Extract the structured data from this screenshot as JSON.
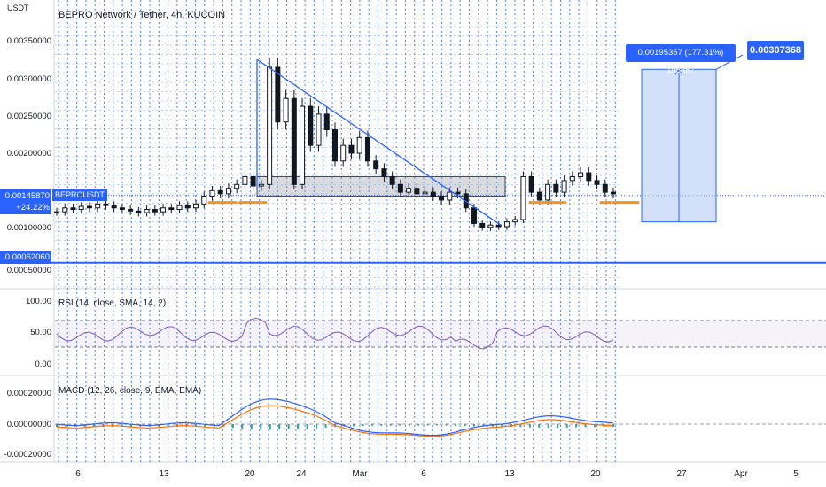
{
  "header": {
    "currency": "USDT",
    "title": "BEPRO Network / Tether, 4h, KUCOIN"
  },
  "price_axis": {
    "ticks": [
      {
        "value": 0.0035,
        "label": "0.00350000"
      },
      {
        "value": 0.003,
        "label": "0.00300000"
      },
      {
        "value": 0.0025,
        "label": "0.00250000"
      },
      {
        "value": 0.002,
        "label": "0.00200000"
      },
      {
        "value": 0.001,
        "label": "0.00100000"
      },
      {
        "value": 0.0005,
        "label": "0.00050000"
      }
    ]
  },
  "last_price": {
    "value": "0.00145870",
    "change": "+24.22%",
    "symbol": "BEPROUSDT"
  },
  "support_level": "0.00062060",
  "measure": {
    "label": "0.00195357 (177.31%) 195357",
    "target": "0.00307368"
  },
  "rsi": {
    "title": "RSI (14, close, SMA, 14, 2)",
    "ticks": [
      "100.00",
      "50.00",
      "0.00"
    ]
  },
  "macd": {
    "title": "MACD (12, 26, close, 9, EMA, EMA)",
    "ticks": [
      "0.00020000",
      "0.00000000",
      "-0.00020000"
    ]
  },
  "time_axis": [
    "6",
    "13",
    "20",
    "24",
    "Mar",
    "6",
    "13",
    "20",
    "27",
    "Apr",
    "5"
  ],
  "colors": {
    "accent": "#2962ff",
    "candle": "#131722",
    "orange": "#f7931a",
    "rsi": "#7e57c2",
    "macd": "#2962ff",
    "signal": "#ff6d00",
    "hist_up": "#26a69a",
    "hist_down": "#ef5350"
  },
  "chart_data": {
    "type": "candlestick",
    "title": "BEPRO Network / Tether, 4h, KUCOIN",
    "ylim": [
      0.0003,
      0.0037
    ],
    "approx_close_series": [
      0.00125,
      0.0013,
      0.00128,
      0.00132,
      0.0013,
      0.00135,
      0.00133,
      0.0013,
      0.00128,
      0.00126,
      0.00124,
      0.00128,
      0.00125,
      0.0013,
      0.00128,
      0.00133,
      0.0013,
      0.00135,
      0.00145,
      0.00152,
      0.00148,
      0.00155,
      0.0016,
      0.0017,
      0.00158,
      0.0016,
      0.0031,
      0.0024,
      0.0027,
      0.0016,
      0.0026,
      0.0021,
      0.0025,
      0.0023,
      0.0019,
      0.0021,
      0.002,
      0.0022,
      0.0019,
      0.0018,
      0.0017,
      0.0016,
      0.0015,
      0.00155,
      0.00148,
      0.0015,
      0.00145,
      0.0014,
      0.0015,
      0.00148,
      0.0013,
      0.0011,
      0.00105,
      0.00108,
      0.00106,
      0.00112,
      0.00115,
      0.0017,
      0.0015,
      0.0014,
      0.0016,
      0.0015,
      0.00165,
      0.0017,
      0.00175,
      0.00165,
      0.0016,
      0.0015,
      0.00148
    ],
    "annotations": {
      "triangle_top": 0.0032,
      "resistance_zone": [
        0.00145,
        0.0017
      ],
      "support_level": 0.0006206,
      "projection_target": 0.00307368
    }
  }
}
